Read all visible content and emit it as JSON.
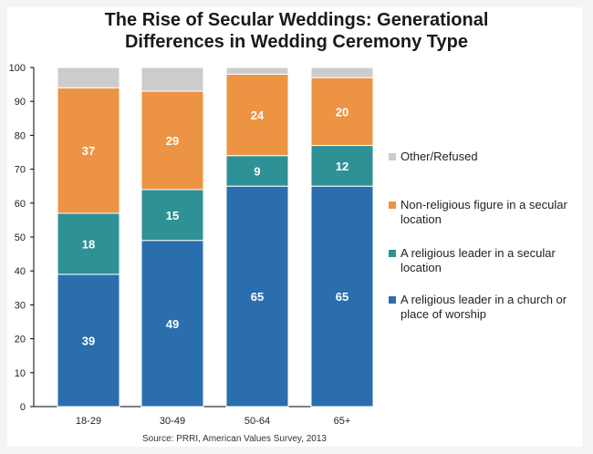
{
  "title": {
    "line1": "The Rise of Secular Weddings: Generational",
    "line2": "Differences in Wedding Ceremony Type"
  },
  "source": "Source: PRRI, American Values Survey, 2013",
  "chart_data": {
    "type": "bar",
    "stacked": true,
    "title": "The Rise of Secular Weddings: Generational Differences in Wedding Ceremony Type",
    "categories": [
      "18-29",
      "30-49",
      "50-64",
      "65+"
    ],
    "ylim": [
      0,
      100
    ],
    "yticks": [
      0,
      10,
      20,
      30,
      40,
      50,
      60,
      70,
      80,
      90,
      100
    ],
    "series": [
      {
        "name": "A religious leader in a church or place of worship",
        "color": "#2a6eae",
        "values": [
          39,
          49,
          65,
          65
        ],
        "labels": [
          "39",
          "49",
          "65",
          "65"
        ]
      },
      {
        "name": "A religious leader in a secular location",
        "color": "#2e9195",
        "values": [
          18,
          15,
          9,
          12
        ],
        "labels": [
          "18",
          "15",
          "9",
          "12"
        ]
      },
      {
        "name": "Non-religious figure in a secular location",
        "color": "#ec9443",
        "values": [
          37,
          29,
          24,
          20
        ],
        "labels": [
          "37",
          "29",
          "24",
          "20"
        ]
      },
      {
        "name": "Other/Refused",
        "color": "#cccccc",
        "values": [
          6,
          7,
          2,
          3
        ],
        "labels": [
          "",
          "",
          "",
          ""
        ]
      }
    ],
    "legend": [
      {
        "label": "Other/Refused",
        "color": "#cccccc"
      },
      {
        "label": "Non-religious figure in a secular location",
        "color": "#ec9443"
      },
      {
        "label": "A religious leader in a secular location",
        "color": "#2e9195"
      },
      {
        "label": "A religious leader in a church or place of worship",
        "color": "#2a6eae"
      }
    ]
  }
}
